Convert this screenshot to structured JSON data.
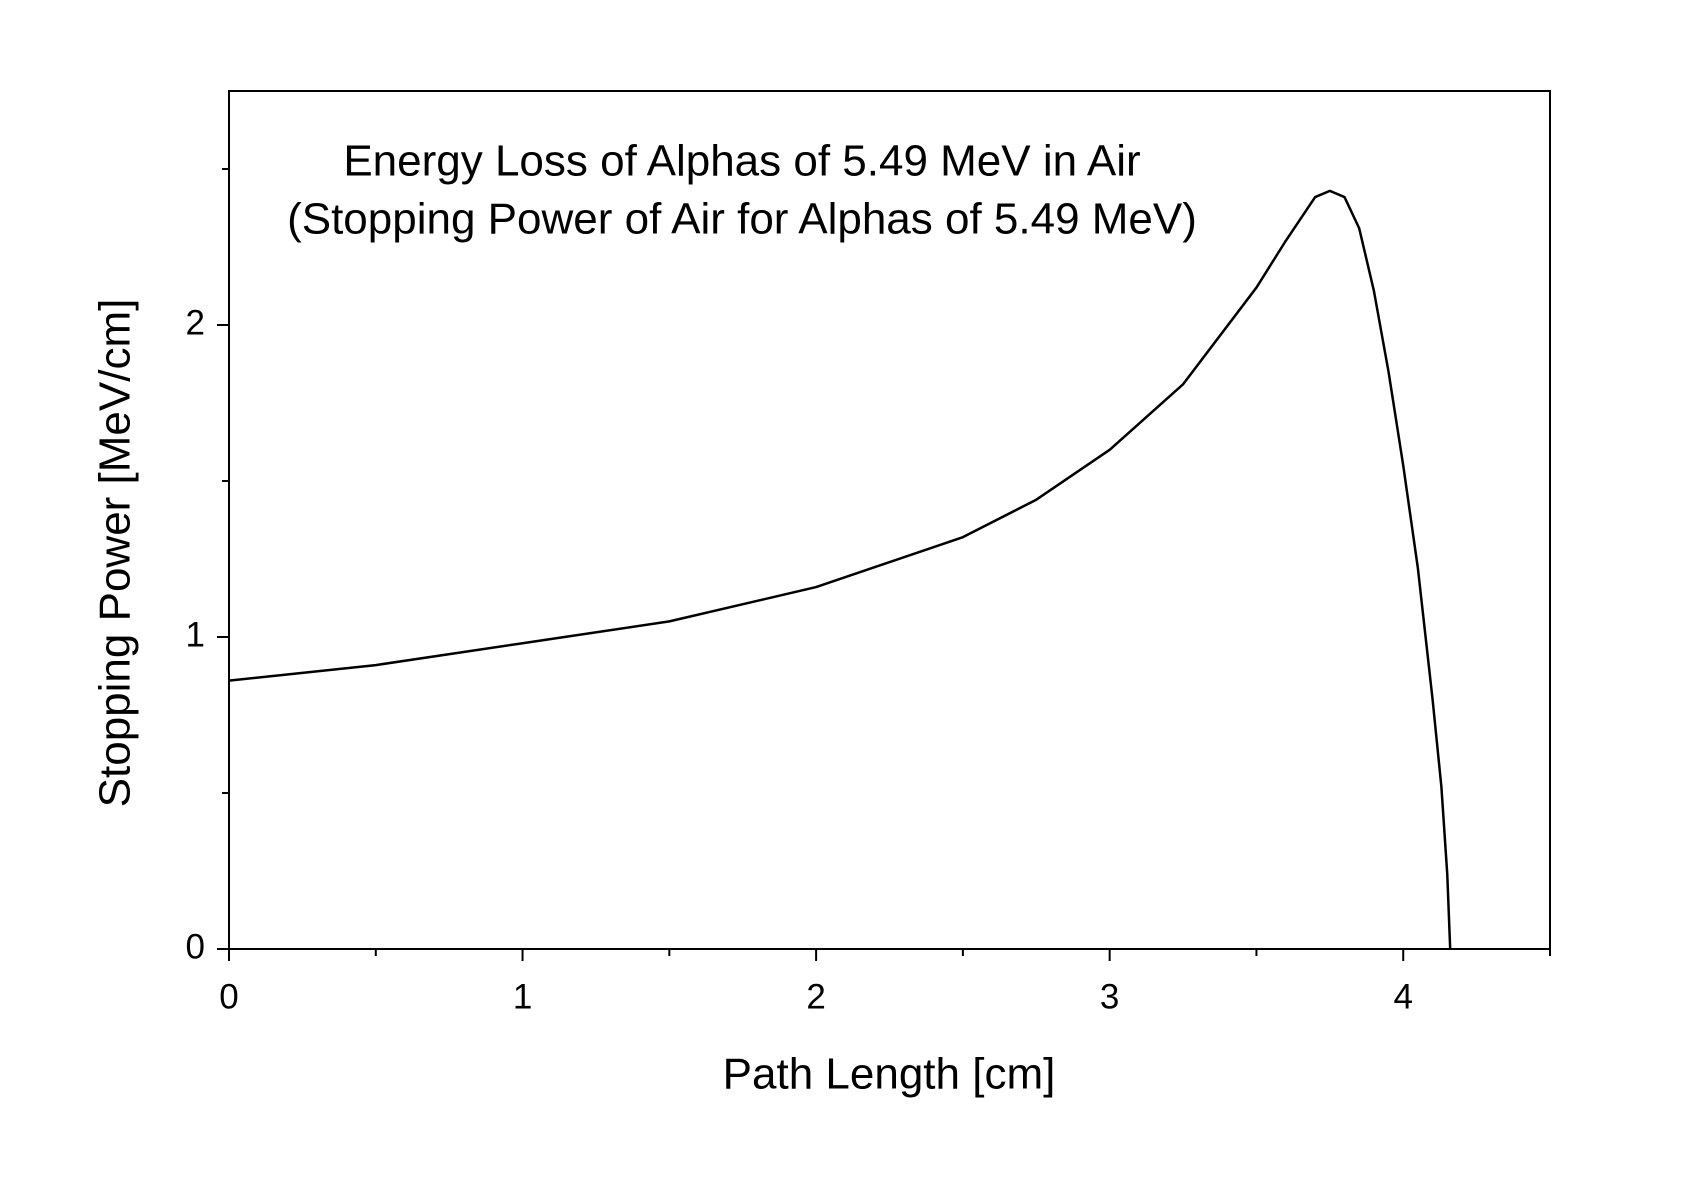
{
  "chart_data": {
    "type": "line",
    "title": "Energy Loss of Alphas of 5.49 MeV in Air",
    "subtitle": "(Stopping Power of Air for Alphas of 5.49 MeV)",
    "x_label": "Path Length [cm]",
    "y_label": "Stopping Power [MeV/cm]",
    "x": [
      0,
      0.5,
      1,
      1.5,
      2,
      2.5,
      2.75,
      3,
      3.25,
      3.5,
      3.6,
      3.7,
      3.75,
      3.8,
      3.85,
      3.9,
      3.95,
      4.0,
      4.05,
      4.1,
      4.13,
      4.15,
      4.16
    ],
    "series": [
      {
        "color": "#000000",
        "values": [
          0.86,
          0.91,
          0.98,
          1.05,
          1.16,
          1.32,
          1.44,
          1.6,
          1.81,
          2.12,
          2.27,
          2.41,
          2.43,
          2.41,
          2.31,
          2.11,
          1.85,
          1.55,
          1.22,
          0.8,
          0.52,
          0.24,
          0
        ]
      }
    ],
    "xlim": [
      0,
      4.5
    ],
    "xticks": [
      0,
      1,
      2,
      3,
      4
    ],
    "xminor_ticks": [
      0.5,
      1.5,
      2.5,
      3.5,
      4.5
    ],
    "ylim": [
      0,
      2.75
    ],
    "yticks": [
      0,
      1,
      2
    ],
    "yminor_ticks": [
      0.5,
      1.5,
      2.5
    ],
    "grid": false
  }
}
